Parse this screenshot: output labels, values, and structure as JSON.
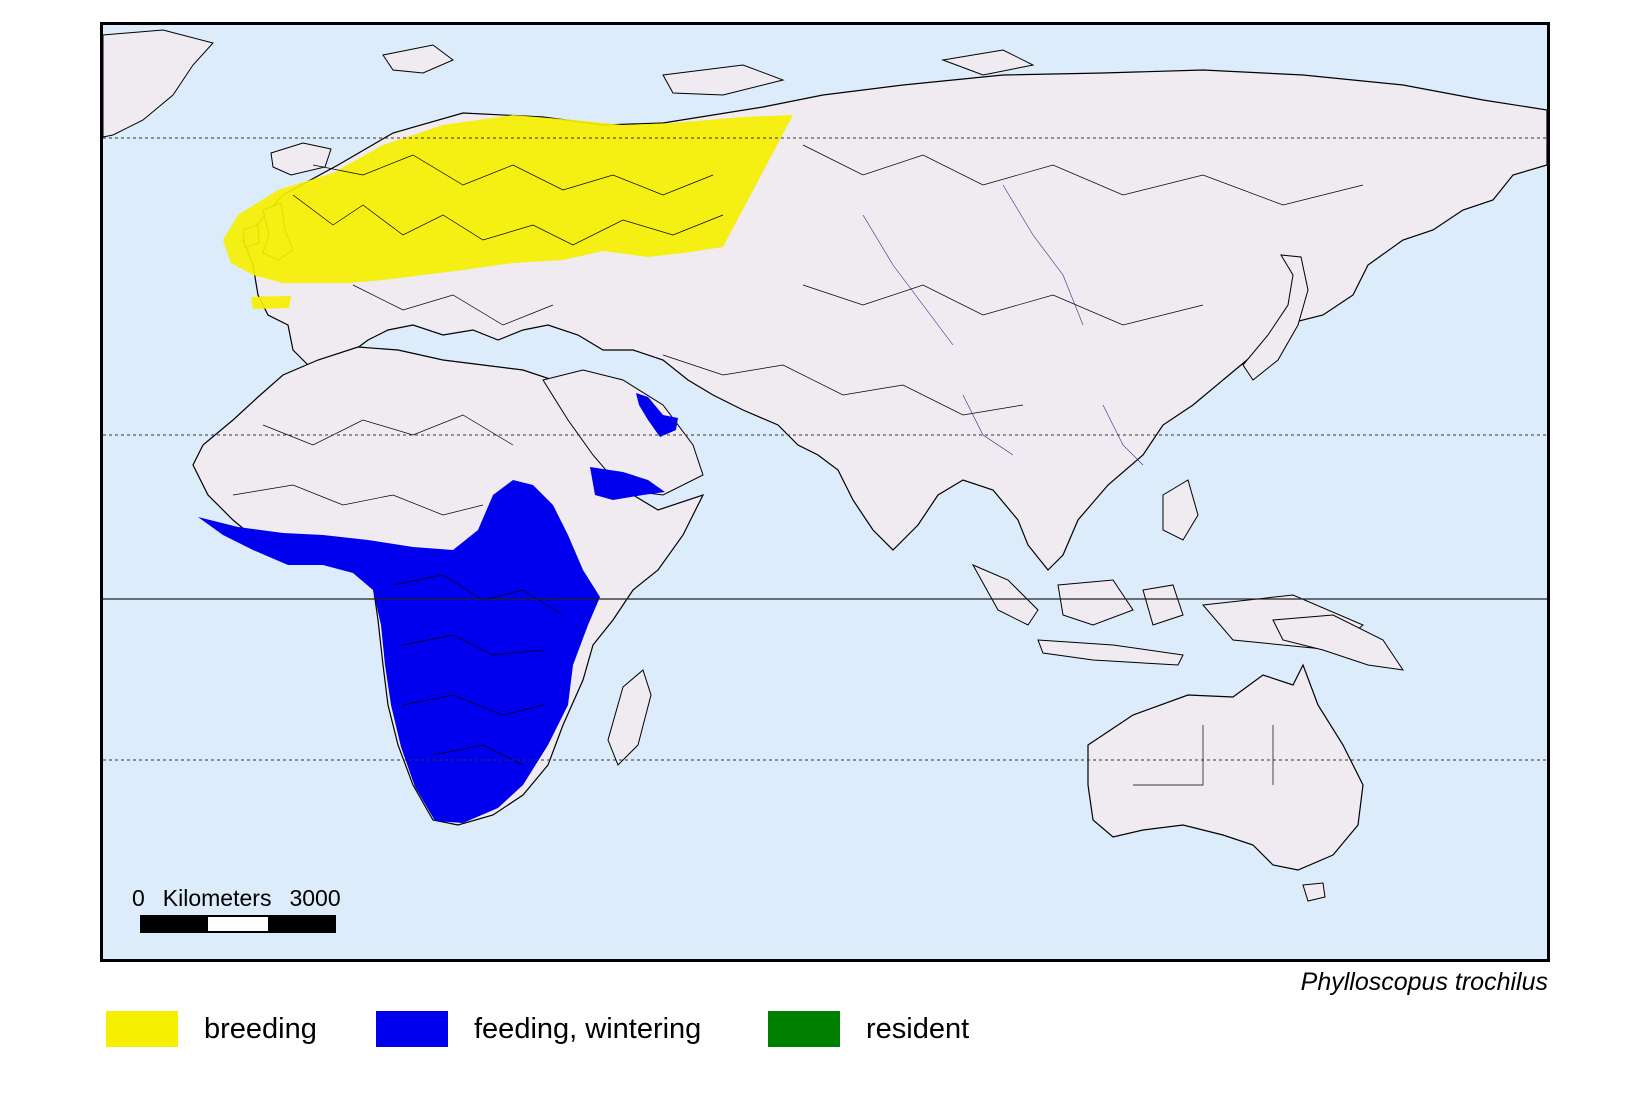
{
  "map": {
    "colors": {
      "ocean": "#dcecfb",
      "land": "#efebf0",
      "border": "#000000",
      "river": "#2a2a8a",
      "breeding": "#f5ef00",
      "wintering": "#0000ee",
      "resident": "#008000"
    },
    "gridlines": [
      "dotted",
      "dotted",
      "solid",
      "dotted"
    ]
  },
  "scale": {
    "start": "0",
    "unit": "Kilometers",
    "end": "3000"
  },
  "species_name": "Phylloscopus trochilus",
  "legend": [
    {
      "label": "breeding",
      "color": "#f5ef00"
    },
    {
      "label": "feeding, wintering",
      "color": "#0000ee"
    },
    {
      "label": "resident",
      "color": "#008000"
    }
  ]
}
